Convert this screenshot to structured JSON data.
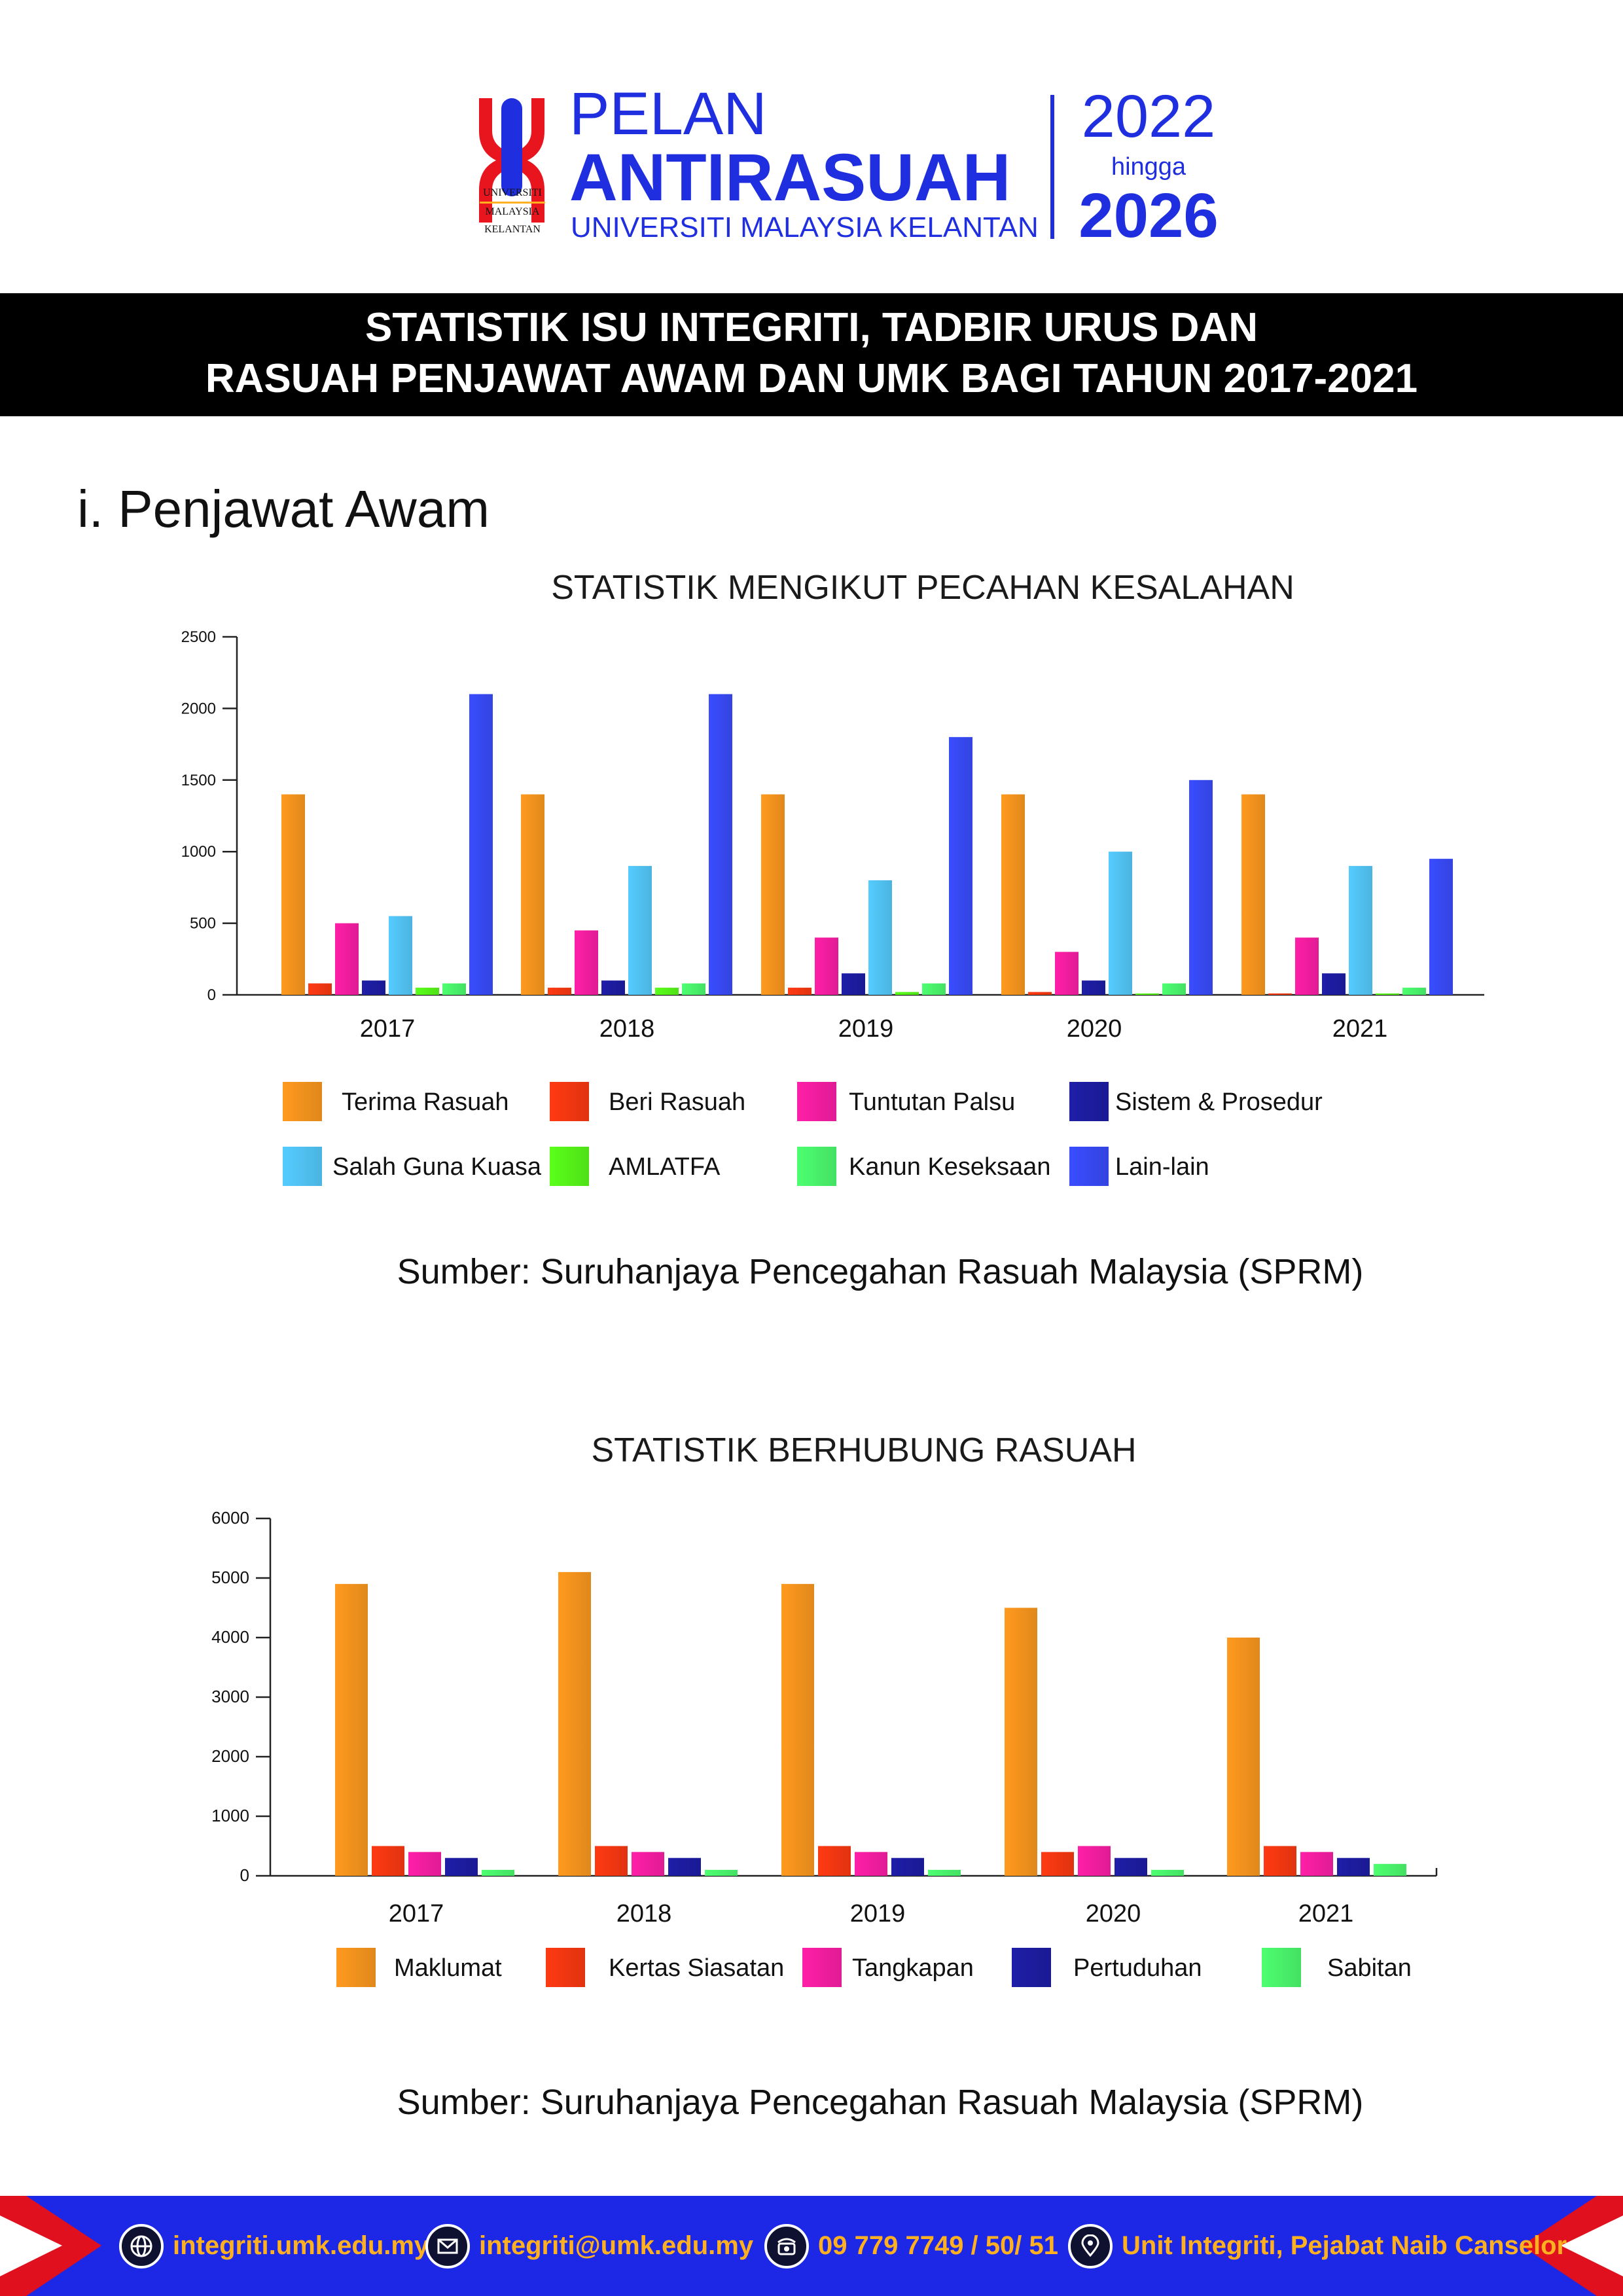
{
  "header": {
    "logo_text": [
      "UNIVERSITI",
      "MALAYSIA",
      "KELANTAN"
    ],
    "title_line1": "PELAN",
    "title_line2": "ANTIRASUAH",
    "title_line3": "UNIVERSITI MALAYSIA KELANTAN",
    "year_start": "2022",
    "year_sep": "hingga",
    "year_end": "2026"
  },
  "banner": {
    "line1": "STATISTIK ISU INTEGRITI, TADBIR URUS DAN",
    "line2": "RASUAH PENJAWAT AWAM DAN UMK BAGI TAHUN 2017-2021"
  },
  "section_title": "i. Penjawat Awam",
  "source_text": "Sumber: Suruhanjaya Pencegahan Rasuah Malaysia (SPRM)",
  "colors": {
    "brand_blue": "#1f2fe0",
    "footer_blue": "#1d27e6",
    "footer_text": "#ffb020",
    "footer_red": "#e0101e"
  },
  "footer": {
    "items": [
      {
        "icon": "globe-icon",
        "text": "integriti.umk.edu.my"
      },
      {
        "icon": "mail-icon",
        "text": "integriti@umk.edu.my"
      },
      {
        "icon": "phone-icon",
        "text": "09 779 7749 /  50/  51"
      },
      {
        "icon": "location-icon",
        "text": "Unit Integriti, Pejabat Naib Canselor"
      }
    ]
  },
  "chart_data": [
    {
      "type": "bar",
      "title": "STATISTIK MENGIKUT PECAHAN KESALAHAN",
      "xlabel": "",
      "ylabel": "",
      "ylim": [
        0,
        2500
      ],
      "yticks": [
        0,
        500,
        1000,
        1500,
        2000,
        2500
      ],
      "grid": false,
      "legend_position": "bottom",
      "categories": [
        "2017",
        "2018",
        "2019",
        "2020",
        "2021"
      ],
      "series": [
        {
          "name": "Terima Rasuah",
          "color": "#ff9a1f",
          "values": [
            1400,
            1400,
            1400,
            1400,
            1400
          ]
        },
        {
          "name": "Beri Rasuah",
          "color": "#ff3a12",
          "values": [
            80,
            50,
            50,
            20,
            10
          ]
        },
        {
          "name": "Tuntutan Palsu",
          "color": "#ff1fa8",
          "values": [
            500,
            450,
            400,
            300,
            400
          ]
        },
        {
          "name": "Sistem & Prosedur",
          "color": "#1e1ea8",
          "values": [
            100,
            100,
            150,
            100,
            150
          ]
        },
        {
          "name": "Salah Guna Kuasa",
          "color": "#55ccff",
          "values": [
            550,
            900,
            800,
            1000,
            900
          ]
        },
        {
          "name": "AMLATFA",
          "color": "#5aff1a",
          "values": [
            50,
            50,
            20,
            10,
            10
          ]
        },
        {
          "name": "Kanun Keseksaan",
          "color": "#4dff70",
          "values": [
            80,
            80,
            80,
            80,
            50
          ]
        },
        {
          "name": "Lain-lain",
          "color": "#3a4dff",
          "values": [
            2100,
            2100,
            1800,
            1500,
            950
          ]
        }
      ]
    },
    {
      "type": "bar",
      "title": "STATISTIK BERHUBUNG RASUAH",
      "xlabel": "",
      "ylabel": "",
      "ylim": [
        0,
        6000
      ],
      "yticks": [
        0,
        1000,
        2000,
        3000,
        4000,
        5000,
        6000
      ],
      "grid": false,
      "legend_position": "bottom",
      "categories": [
        "2017",
        "2018",
        "2019",
        "2020",
        "2021"
      ],
      "series": [
        {
          "name": "Maklumat",
          "color": "#ff9a1f",
          "values": [
            4900,
            5100,
            4900,
            4500,
            4000
          ]
        },
        {
          "name": "Kertas Siasatan",
          "color": "#ff3a12",
          "values": [
            500,
            500,
            500,
            400,
            500
          ]
        },
        {
          "name": "Tangkapan",
          "color": "#ff1fa8",
          "values": [
            400,
            400,
            400,
            500,
            400
          ]
        },
        {
          "name": "Pertuduhan",
          "color": "#1e1ea8",
          "values": [
            300,
            300,
            300,
            300,
            300
          ]
        },
        {
          "name": "Sabitan",
          "color": "#4dff70",
          "values": [
            100,
            100,
            100,
            100,
            200
          ]
        }
      ]
    }
  ]
}
